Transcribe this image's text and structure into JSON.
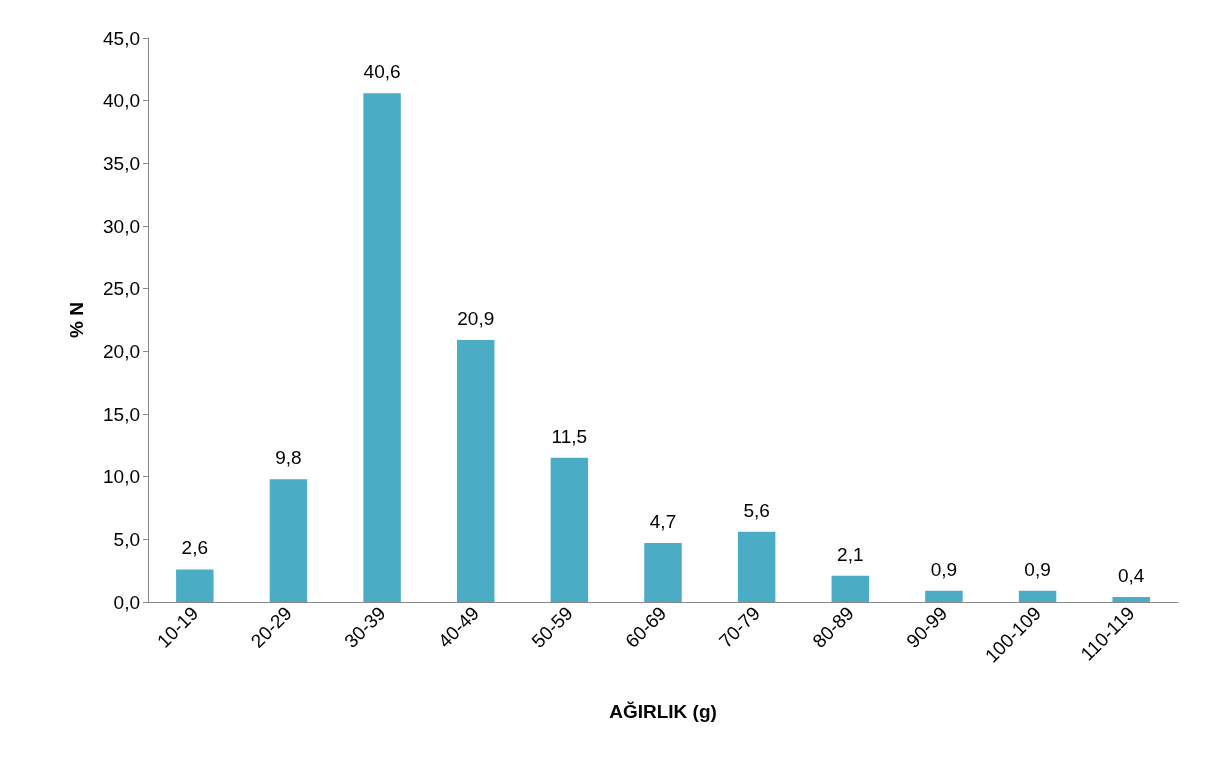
{
  "chart_data": {
    "type": "bar",
    "xlabel": "AĞIRLIK (g)",
    "ylabel": "% N",
    "categories": [
      "10-19",
      "20-29",
      "30-39",
      "40-49",
      "50-59",
      "60-69",
      "70-79",
      "80-89",
      "90-99",
      "100-109",
      "110-119"
    ],
    "values": [
      2.6,
      9.8,
      40.6,
      20.9,
      11.5,
      4.7,
      5.6,
      2.1,
      0.9,
      0.9,
      0.4
    ],
    "value_labels": [
      "2,6",
      "9,8",
      "40,6",
      "20,9",
      "11,5",
      "4,7",
      "5,6",
      "2,1",
      "0,9",
      "0,9",
      "0,4"
    ],
    "color": "#4bacc6",
    "ylim": [
      0,
      45
    ],
    "yticks": [
      {
        "value": 0,
        "label": "0,0"
      },
      {
        "value": 5,
        "label": "5,0"
      },
      {
        "value": 10,
        "label": "10,0"
      },
      {
        "value": 15,
        "label": "15,0"
      },
      {
        "value": 20,
        "label": "20,0"
      },
      {
        "value": 25,
        "label": "25,0"
      },
      {
        "value": 30,
        "label": "30,0"
      },
      {
        "value": 35,
        "label": "35,0"
      },
      {
        "value": 40,
        "label": "40,0"
      },
      {
        "value": 45,
        "label": "45,0"
      }
    ],
    "grid": false
  }
}
